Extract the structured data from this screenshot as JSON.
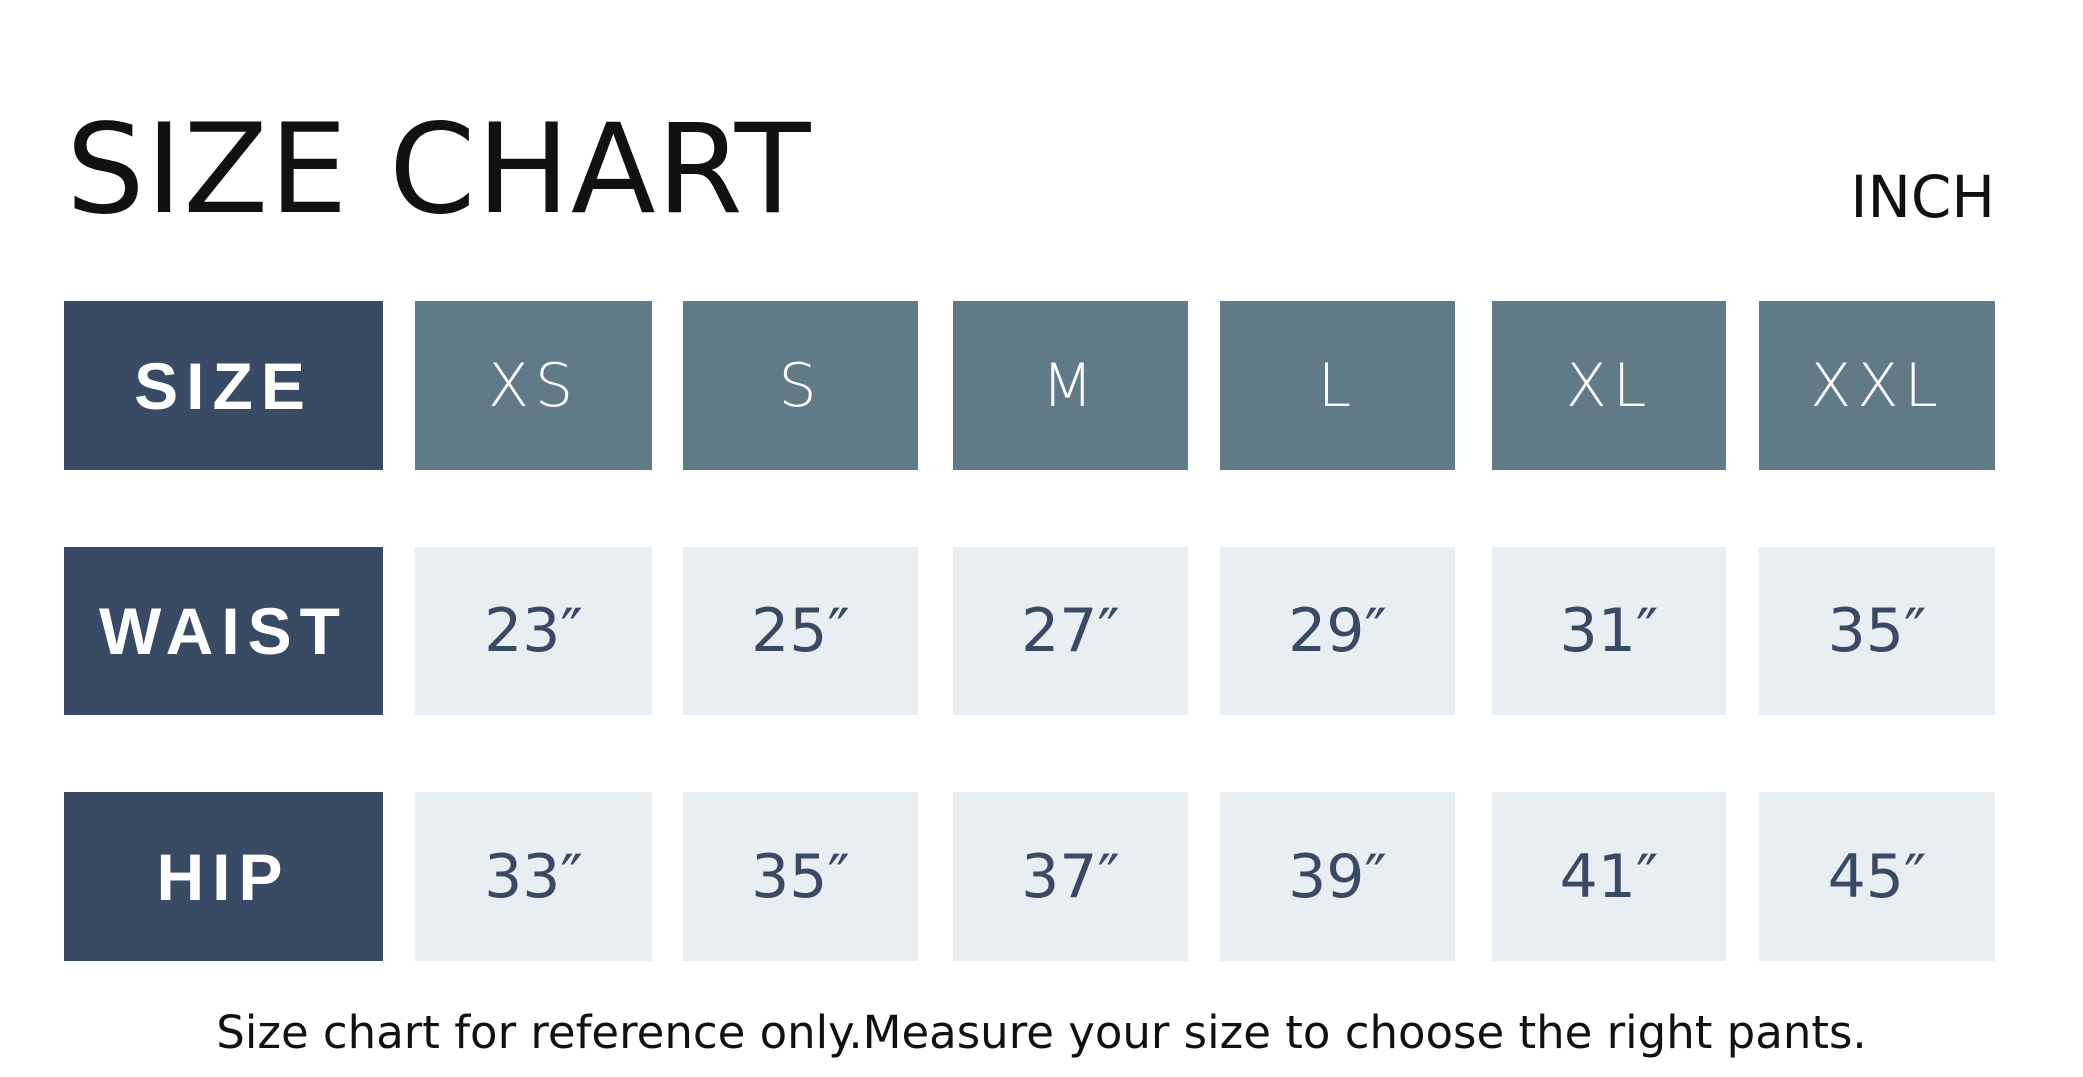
{
  "title": "SIZE CHART",
  "unit": "INCH",
  "table": {
    "row_headers": [
      "SIZE",
      "WAIST",
      "HIP"
    ],
    "sizes": [
      "XS",
      "S",
      "M",
      "L",
      "XL",
      "XXL"
    ],
    "waist": [
      "23″",
      "25″",
      "27″",
      "29″",
      "31″",
      "35″"
    ],
    "hip": [
      "33″",
      "35″",
      "37″",
      "39″",
      "41″",
      "45″"
    ]
  },
  "footer": "Size chart for reference only.Measure your size to choose the right pants.",
  "colors": {
    "row_header": "#384a64",
    "size_header": "#607a87",
    "value_cell": "#e9eef3",
    "value_text": "#3a4a62"
  }
}
